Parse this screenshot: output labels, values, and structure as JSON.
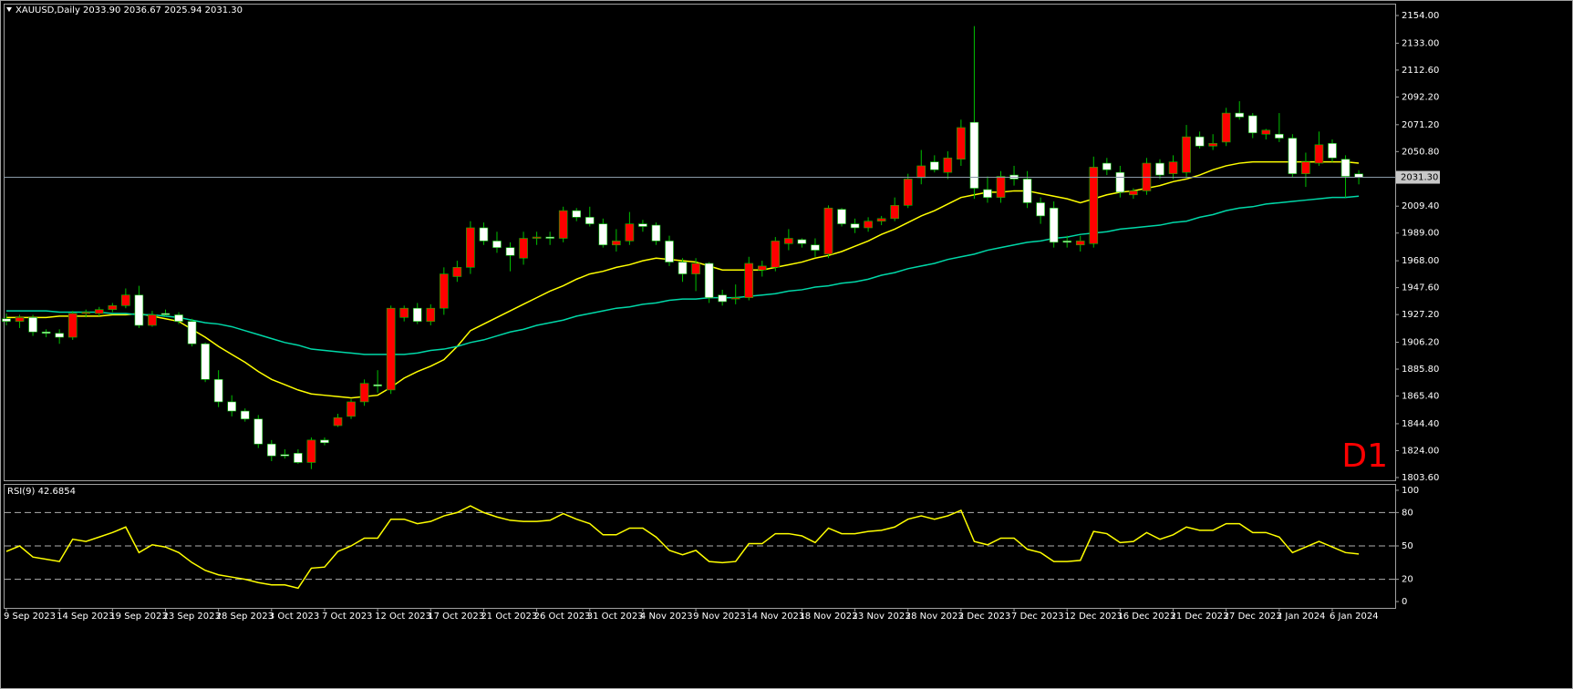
{
  "chart_data": [
    {
      "type": "candlestick",
      "title": "XAUUSD,Daily  2033.90 2036.67 2025.94 2031.30",
      "categories": [
        "9 Sep 2023",
        null,
        null,
        null,
        "14 Sep 2023",
        null,
        null,
        null,
        "19 Sep 2023",
        null,
        null,
        null,
        "23 Sep 2023",
        null,
        null,
        null,
        "28 Sep 2023",
        null,
        null,
        null,
        "3 Oct 2023",
        null,
        null,
        null,
        "7 Oct 2023",
        null,
        null,
        null,
        "12 Oct 2023",
        null,
        null,
        null,
        "17 Oct 2023",
        null,
        null,
        null,
        "21 Oct 2023",
        null,
        null,
        null,
        "26 Oct 2023",
        null,
        null,
        null,
        "31 Oct 2023",
        null,
        null,
        null,
        "4 Nov 2023",
        null,
        null,
        null,
        "9 Nov 2023",
        null,
        null,
        null,
        "14 Nov 2023",
        null,
        null,
        null,
        "18 Nov 2023",
        null,
        null,
        null,
        "23 Nov 2023",
        null,
        null,
        null,
        "28 Nov 2023",
        null,
        null,
        null,
        "2 Dec 2023",
        null,
        null,
        null,
        "7 Dec 2023",
        null,
        null,
        null,
        "12 Dec 2023",
        null,
        null,
        null,
        "16 Dec 2023",
        null,
        null,
        null,
        "21 Dec 2023",
        null,
        null,
        null,
        "27 Dec 2023",
        null,
        null,
        null,
        "2 Jan 2024",
        null,
        null,
        null,
        "6 Jan 2024",
        null,
        null
      ],
      "ohlc": [
        [
          1924,
          1928,
          1919,
          1922
        ],
        [
          1922,
          1927,
          1917,
          1925
        ],
        [
          1925,
          1927,
          1911,
          1914
        ],
        [
          1914,
          1916,
          1910,
          1913
        ],
        [
          1913,
          1916,
          1905,
          1910
        ],
        [
          1910,
          1930,
          1908,
          1928
        ],
        [
          1928,
          1931,
          1925,
          1929
        ],
        [
          1928,
          1933,
          1926,
          1931
        ],
        [
          1931,
          1936,
          1929,
          1934
        ],
        [
          1934,
          1947,
          1932,
          1942
        ],
        [
          1942,
          1949,
          1917,
          1919
        ],
        [
          1919,
          1930,
          1918,
          1927
        ],
        [
          1928,
          1931,
          1926,
          1927
        ],
        [
          1927,
          1929,
          1920,
          1922
        ],
        [
          1922,
          1924,
          1903,
          1905
        ],
        [
          1905,
          1906,
          1876,
          1878
        ],
        [
          1878,
          1885,
          1857,
          1861
        ],
        [
          1861,
          1866,
          1850,
          1854
        ],
        [
          1854,
          1856,
          1846,
          1848
        ],
        [
          1848,
          1851,
          1826,
          1829
        ],
        [
          1829,
          1832,
          1816,
          1820
        ],
        [
          1821,
          1825,
          1818,
          1820
        ],
        [
          1822,
          1825,
          1814,
          1815
        ],
        [
          1815,
          1834,
          1810,
          1832
        ],
        [
          1832,
          1834,
          1828,
          1830
        ],
        [
          1843,
          1852,
          1842,
          1849
        ],
        [
          1850,
          1863,
          1848,
          1861
        ],
        [
          1861,
          1878,
          1858,
          1875
        ],
        [
          1874,
          1885,
          1868,
          1873
        ],
        [
          1870,
          1934,
          1867,
          1932
        ],
        [
          1925,
          1934,
          1922,
          1932
        ],
        [
          1932,
          1936,
          1920,
          1922
        ],
        [
          1922,
          1935,
          1919,
          1932
        ],
        [
          1932,
          1963,
          1927,
          1958
        ],
        [
          1956,
          1968,
          1952,
          1963
        ],
        [
          1963,
          1998,
          1958,
          1993
        ],
        [
          1993,
          1997,
          1980,
          1983
        ],
        [
          1983,
          1990,
          1974,
          1978
        ],
        [
          1978,
          1982,
          1960,
          1972
        ],
        [
          1970,
          1990,
          1965,
          1985
        ],
        [
          1985,
          1990,
          1980,
          1986
        ],
        [
          1986,
          1990,
          1980,
          1985
        ],
        [
          1985,
          2009,
          1982,
          2006
        ],
        [
          2006,
          2008,
          1998,
          2001
        ],
        [
          2001,
          2009,
          1994,
          1996
        ],
        [
          1996,
          2000,
          1978,
          1980
        ],
        [
          1980,
          1992,
          1975,
          1983
        ],
        [
          1983,
          2005,
          1980,
          1996
        ],
        [
          1996,
          1999,
          1990,
          1994
        ],
        [
          1995,
          1997,
          1980,
          1983
        ],
        [
          1983,
          1987,
          1964,
          1967
        ],
        [
          1967,
          1970,
          1952,
          1958
        ],
        [
          1958,
          1970,
          1945,
          1966
        ],
        [
          1966,
          1967,
          1936,
          1940
        ],
        [
          1942,
          1946,
          1934,
          1937
        ],
        [
          1939,
          1950,
          1935,
          1940
        ],
        [
          1940,
          1971,
          1938,
          1966
        ],
        [
          1961,
          1968,
          1956,
          1964
        ],
        [
          1963,
          1986,
          1960,
          1983
        ],
        [
          1981,
          1992,
          1976,
          1985
        ],
        [
          1984,
          1985,
          1978,
          1981
        ],
        [
          1980,
          1985,
          1971,
          1976
        ],
        [
          1973,
          2010,
          1970,
          2008
        ],
        [
          2007,
          2008,
          1994,
          1996
        ],
        [
          1996,
          2000,
          1989,
          1993
        ],
        [
          1993,
          2001,
          1990,
          1998
        ],
        [
          1998,
          2002,
          1995,
          2000
        ],
        [
          2000,
          2016,
          1998,
          2010
        ],
        [
          2010,
          2034,
          2008,
          2030
        ],
        [
          2031,
          2052,
          2026,
          2040
        ],
        [
          2043,
          2048,
          2035,
          2037
        ],
        [
          2035,
          2051,
          2030,
          2046
        ],
        [
          2045,
          2075,
          2040,
          2069
        ],
        [
          2073,
          2146,
          2015,
          2023
        ],
        [
          2022,
          2032,
          2012,
          2016
        ],
        [
          2016,
          2036,
          2012,
          2032
        ],
        [
          2033,
          2040,
          2025,
          2030
        ],
        [
          2030,
          2036,
          2008,
          2012
        ],
        [
          2012,
          2016,
          1996,
          2002
        ],
        [
          2008,
          2013,
          1978,
          1982
        ],
        [
          1983,
          1987,
          1978,
          1982
        ],
        [
          1980,
          1987,
          1975,
          1983
        ],
        [
          1981,
          2047,
          1978,
          2039
        ],
        [
          2042,
          2046,
          2033,
          2037
        ],
        [
          2035,
          2040,
          2016,
          2020
        ],
        [
          2018,
          2023,
          2015,
          2021
        ],
        [
          2021,
          2046,
          2018,
          2042
        ],
        [
          2042,
          2045,
          2030,
          2033
        ],
        [
          2034,
          2048,
          2030,
          2043
        ],
        [
          2035,
          2071,
          2031,
          2062
        ],
        [
          2062,
          2066,
          2053,
          2055
        ],
        [
          2055,
          2064,
          2052,
          2057
        ],
        [
          2058,
          2084,
          2055,
          2080
        ],
        [
          2080,
          2089,
          2075,
          2077
        ],
        [
          2078,
          2080,
          2061,
          2065
        ],
        [
          2064,
          2068,
          2060,
          2067
        ],
        [
          2064,
          2080,
          2058,
          2061
        ],
        [
          2061,
          2064,
          2031,
          2034
        ],
        [
          2034,
          2050,
          2024,
          2043
        ],
        [
          2042,
          2066,
          2040,
          2056
        ],
        [
          2057,
          2060,
          2043,
          2046
        ],
        [
          2045,
          2048,
          2016,
          2032
        ],
        [
          2033.9,
          2036.67,
          2025.94,
          2031.3
        ]
      ],
      "up_color": "#ff0000",
      "down_color": "#ffffff",
      "wick_color": "#00c000",
      "overlays": [
        {
          "color": "#ffff00",
          "values": [
            1925,
            1925,
            1925,
            1925,
            1926,
            1926,
            1926,
            1926,
            1927,
            1927,
            1928,
            1926,
            1924,
            1922,
            1916,
            1910,
            1903,
            1897,
            1891,
            1884,
            1878,
            1874,
            1870,
            1867,
            1866,
            1865,
            1864,
            1865,
            1866,
            1872,
            1879,
            1884,
            1888,
            1893,
            1903,
            1915,
            1920,
            1925,
            1930,
            1935,
            1940,
            1945,
            1949,
            1954,
            1958,
            1960,
            1963,
            1965,
            1968,
            1970,
            1969,
            1968,
            1967,
            1964,
            1961,
            1961,
            1961,
            1961,
            1963,
            1965,
            1967,
            1970,
            1972,
            1975,
            1979,
            1983,
            1988,
            1992,
            1997,
            2002,
            2006,
            2011,
            2016,
            2018,
            2020,
            2020,
            2021,
            2021,
            2019,
            2017,
            2015,
            2012,
            2015,
            2018,
            2020,
            2021,
            2023,
            2025,
            2028,
            2030,
            2033,
            2037,
            2040,
            2042,
            2043,
            2043,
            2043,
            2043,
            2043,
            2043,
            2043,
            2043,
            2042
          ]
        },
        {
          "color": "#00d8a8",
          "values": [
            1930,
            1930,
            1930,
            1930,
            1929,
            1929,
            1929,
            1929,
            1928,
            1928,
            1927,
            1927,
            1926,
            1925,
            1923,
            1921,
            1920,
            1918,
            1915,
            1912,
            1909,
            1906,
            1904,
            1901,
            1900,
            1899,
            1898,
            1897,
            1897,
            1897,
            1897,
            1898,
            1900,
            1901,
            1903,
            1906,
            1908,
            1911,
            1914,
            1916,
            1919,
            1921,
            1923,
            1926,
            1928,
            1930,
            1932,
            1933,
            1935,
            1936,
            1938,
            1939,
            1939,
            1940,
            1940,
            1940,
            1941,
            1942,
            1943,
            1945,
            1946,
            1948,
            1949,
            1951,
            1952,
            1954,
            1957,
            1959,
            1962,
            1964,
            1966,
            1969,
            1971,
            1973,
            1976,
            1978,
            1980,
            1982,
            1983,
            1985,
            1986,
            1988,
            1989,
            1990,
            1992,
            1993,
            1994,
            1995,
            1997,
            1998,
            2001,
            2003,
            2006,
            2008,
            2009,
            2011,
            2012,
            2013,
            2014,
            2015,
            2016,
            2016,
            2017
          ]
        }
      ],
      "price_line": {
        "value": 2031.3,
        "label": "2031.30"
      },
      "ylim": [
        1801.5,
        2163
      ],
      "yticks": [
        {
          "value": 2154,
          "label": "2154.00"
        },
        {
          "value": 2133,
          "label": "2133.00"
        },
        {
          "value": 2112.6,
          "label": "2112.60"
        },
        {
          "value": 2092.2,
          "label": "2092.20"
        },
        {
          "value": 2071.2,
          "label": "2071.20"
        },
        {
          "value": 2050.8,
          "label": "2050.80"
        },
        {
          "value": 2009.4,
          "label": "2009.40"
        },
        {
          "value": 1989,
          "label": "1989.00"
        },
        {
          "value": 1968,
          "label": "1968.00"
        },
        {
          "value": 1947.6,
          "label": "1947.60"
        },
        {
          "value": 1927.2,
          "label": "1927.20"
        },
        {
          "value": 1906.2,
          "label": "1906.20"
        },
        {
          "value": 1885.8,
          "label": "1885.80"
        },
        {
          "value": 1865.4,
          "label": "1865.40"
        },
        {
          "value": 1844.4,
          "label": "1844.40"
        },
        {
          "value": 1824,
          "label": "1824.00"
        },
        {
          "value": 1803.6,
          "label": "1803.60"
        }
      ],
      "annotation": "D1",
      "annotation_color": "#ff0000"
    },
    {
      "type": "line",
      "title": "RSI(9) 42.6854",
      "color": "#ffff00",
      "values": [
        45,
        50,
        40,
        38,
        36,
        56,
        54,
        58,
        62,
        67,
        44,
        51,
        49,
        44,
        35,
        28,
        24,
        22,
        20,
        17,
        15,
        15,
        12,
        30,
        31,
        45,
        50,
        57,
        57,
        74,
        74,
        70,
        72,
        77,
        80,
        86,
        80,
        76,
        73,
        72,
        72,
        73,
        79,
        74,
        70,
        60,
        60,
        66,
        66,
        58,
        46,
        42,
        46,
        36,
        35,
        36,
        52,
        52,
        61,
        61,
        59,
        53,
        66,
        61,
        61,
        63,
        64,
        67,
        74,
        77,
        74,
        77,
        82,
        54,
        51,
        57,
        57,
        47,
        44,
        36,
        36,
        37,
        63,
        61,
        53,
        54,
        62,
        56,
        60,
        67,
        64,
        64,
        70,
        70,
        62,
        62,
        58,
        44,
        49,
        54,
        49,
        44,
        42.6854
      ],
      "ylim": [
        -5.7,
        105.7
      ],
      "yticks": [
        0,
        20,
        50,
        80,
        100
      ],
      "levels": [
        20,
        50,
        80
      ]
    }
  ]
}
